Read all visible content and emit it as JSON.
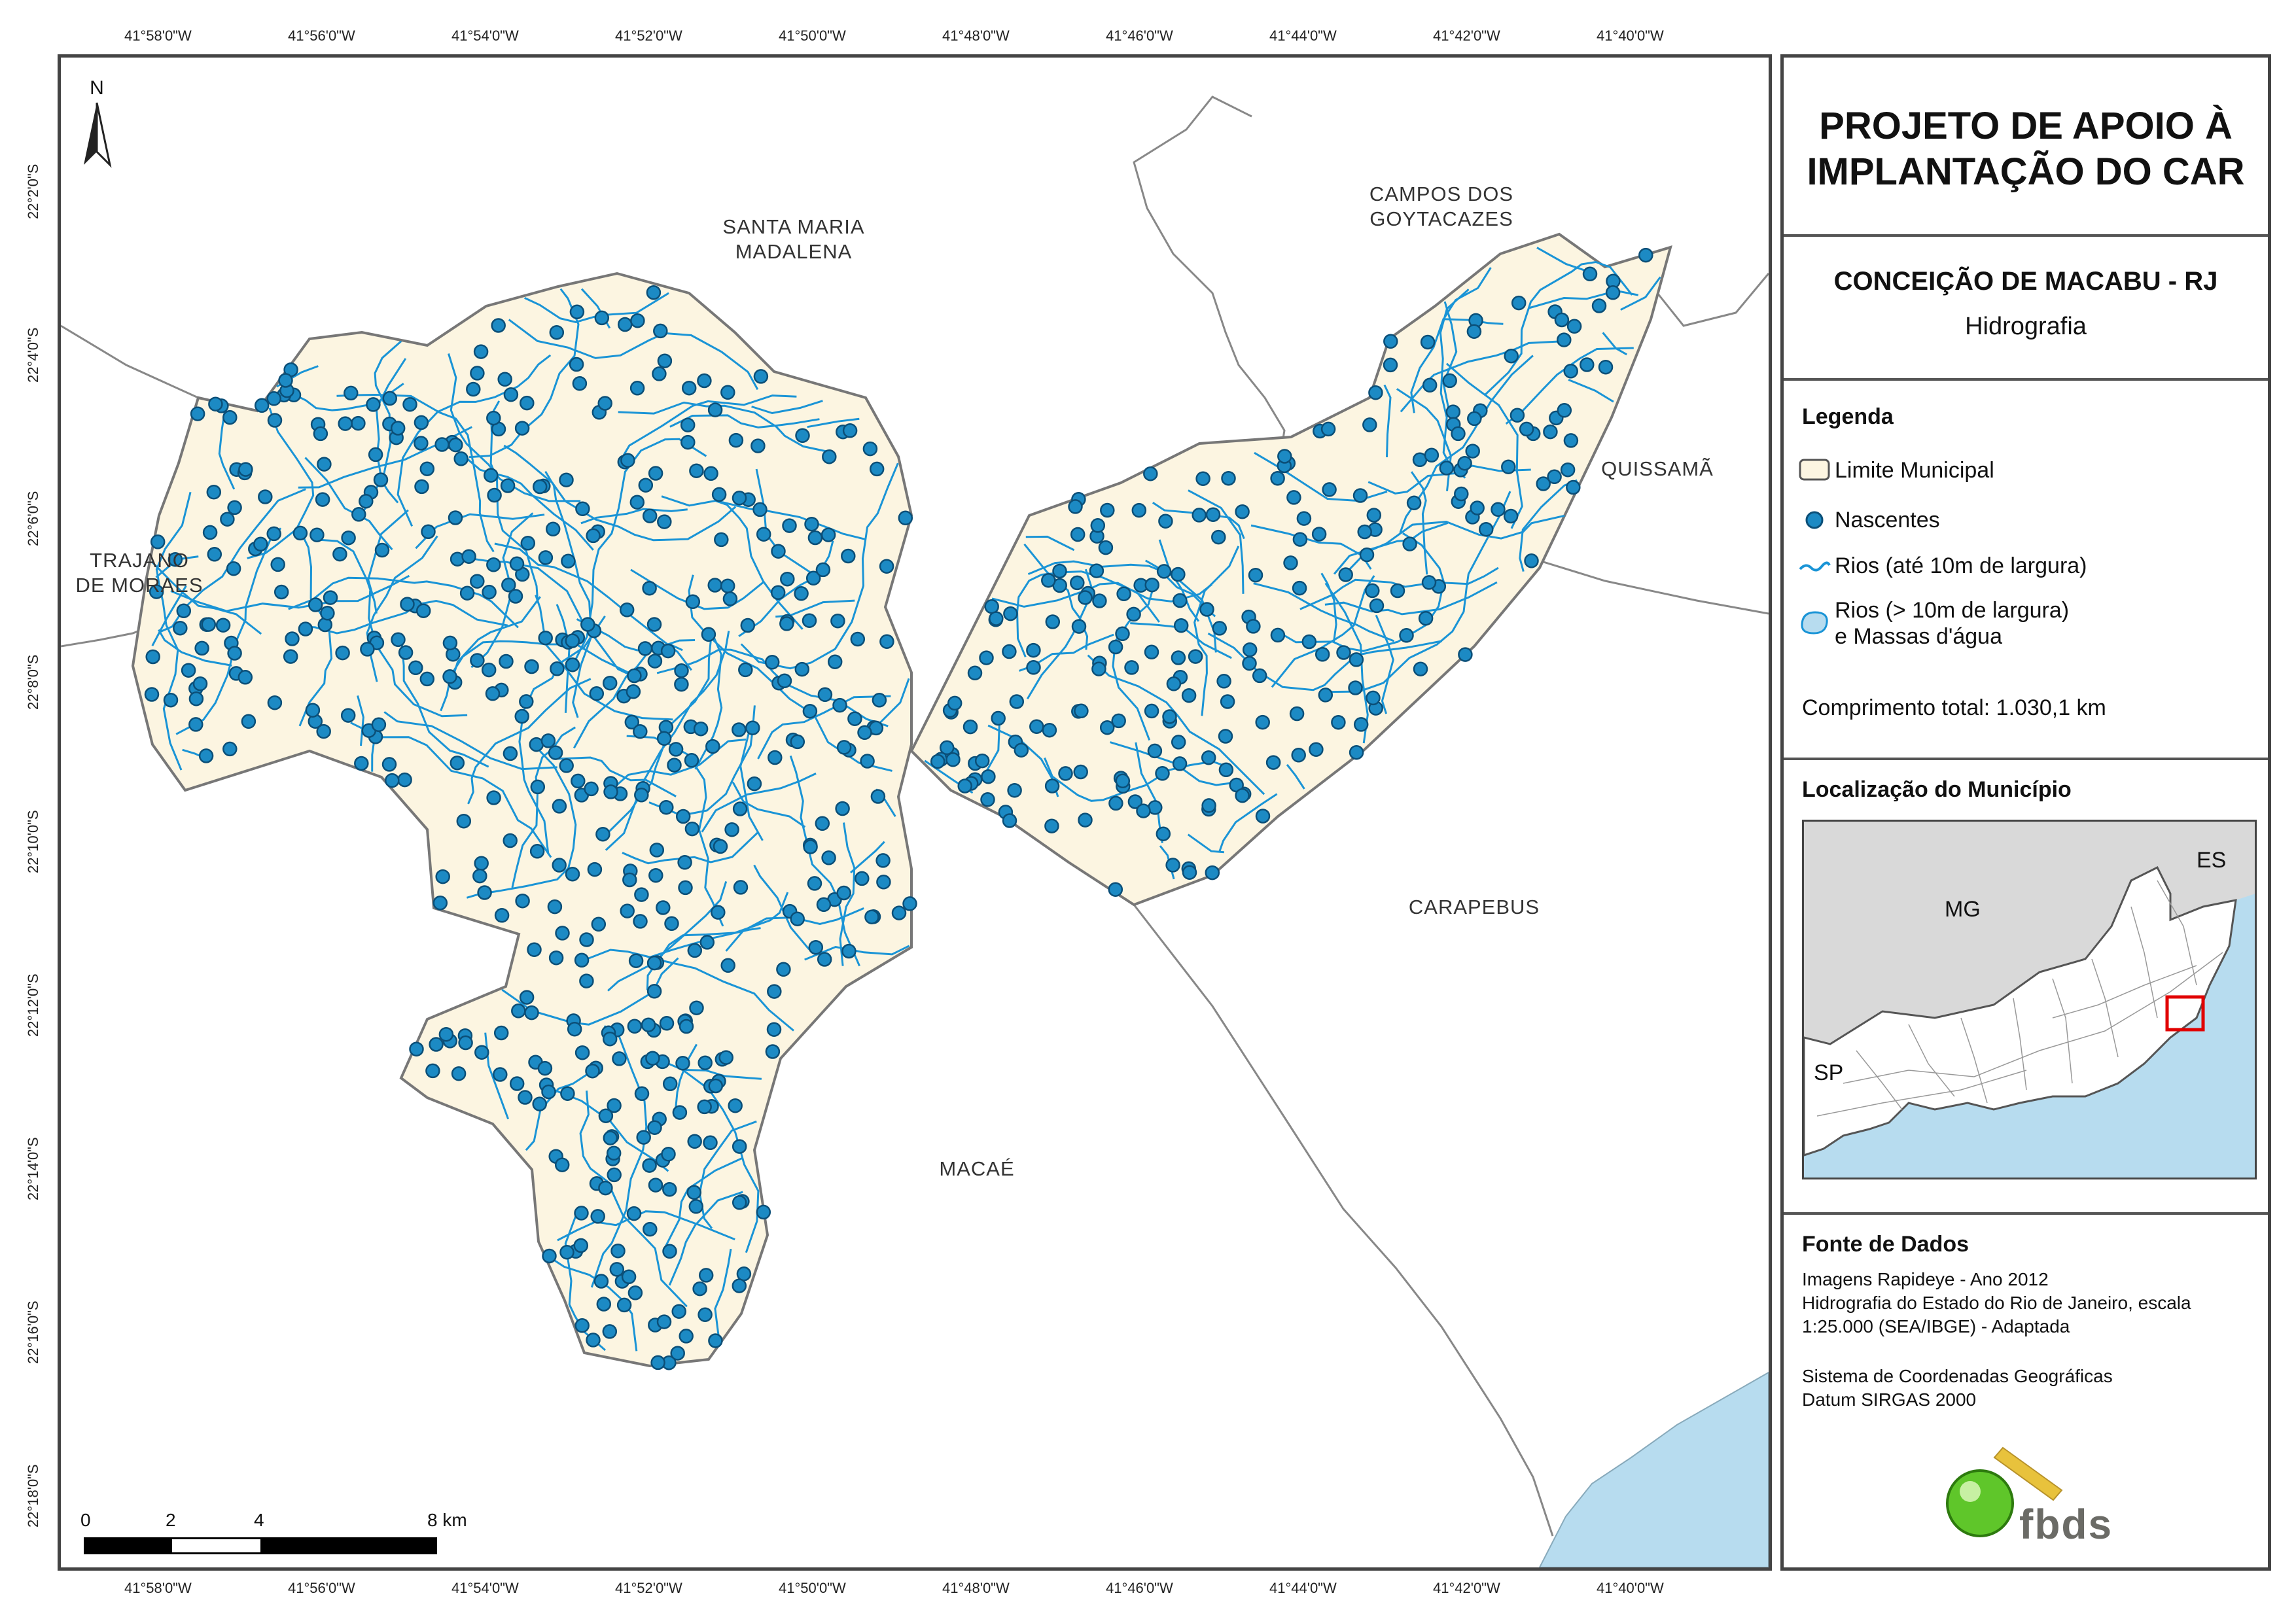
{
  "grid": {
    "top_ticks": [
      "41°58'0\"W",
      "41°56'0\"W",
      "41°54'0\"W",
      "41°52'0\"W",
      "41°50'0\"W",
      "41°48'0\"W",
      "41°46'0\"W",
      "41°44'0\"W",
      "41°42'0\"W",
      "41°40'0\"W"
    ],
    "left_ticks": [
      "22°2'0\"S",
      "22°4'0\"S",
      "22°6'0\"S",
      "22°8'0\"S",
      "22°10'0\"S",
      "22°12'0\"S",
      "22°14'0\"S",
      "22°16'0\"S",
      "22°18'0\"S"
    ]
  },
  "places": {
    "santa_maria": [
      "SANTA MARIA",
      "MADALENA"
    ],
    "campos": [
      "CAMPOS DOS",
      "GOYTACAZES"
    ],
    "quissama": "QUISSAMÃ",
    "trajano": [
      "TRAJANO",
      "DE MORAES"
    ],
    "carapebus": "CARAPEBUS",
    "macae": "MACAÉ"
  },
  "north_arrow": "N",
  "scale_bar": {
    "labels": [
      "0",
      "2",
      "4",
      "8 km"
    ]
  },
  "panel": {
    "project_title": [
      "PROJETO DE APOIO À",
      "IMPLANTAÇÃO DO CAR"
    ],
    "municipality": "CONCEIÇÃO DE MACABU - RJ",
    "theme": "Hidrografia",
    "legend": {
      "heading": "Legenda",
      "items": [
        "Limite Municipal",
        "Nascentes",
        "Rios (até 10m de largura)",
        "Rios (> 10m de largura)",
        "e Massas d'água"
      ]
    },
    "total_length": "Comprimento total:  1.030,1 km",
    "location": {
      "heading": "Localização do Município",
      "labels": [
        "MG",
        "ES",
        "SP"
      ]
    },
    "sources": {
      "heading": "Fonte de Dados",
      "lines": [
        "Imagens Rapideye - Ano 2012",
        "Hidrografia do Estado do Rio de Janeiro, escala",
        "1:25.000 (SEA/IBGE) - Adaptada",
        "Sistema de Coordenadas Geográficas",
        "Datum SIRGAS 2000"
      ]
    },
    "logo_text": "fbds"
  },
  "colors": {
    "municipality_fill": "#fcf5e1",
    "river": "#1a94d6",
    "spring": "#1c8ac4",
    "water": "#b7dcef",
    "boundary": "#777777",
    "outside_state": "#d9d9d9"
  }
}
